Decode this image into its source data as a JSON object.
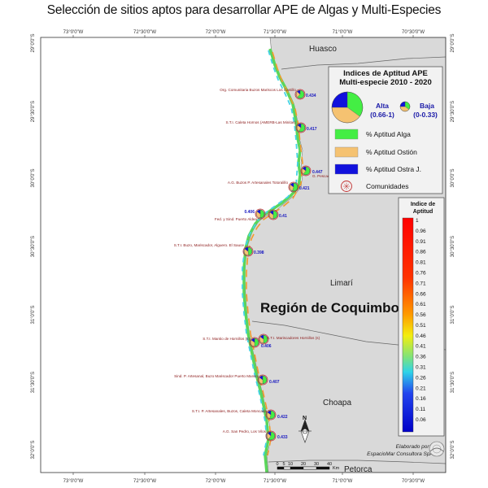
{
  "title": "Selección de sitios aptos para desarrollar APE de Algas y Multi-Especies",
  "map": {
    "lon_ticks": [
      "73°0'0\"W",
      "72°30'0\"W",
      "72°0'0\"W",
      "71°30'0\"W",
      "71°0'0\"W",
      "70°30'0\"W"
    ],
    "lat_ticks": [
      "29°0'0\"S",
      "29°30'0\"S",
      "30°0'0\"S",
      "30°30'0\"S",
      "31°0'0\"S",
      "31°30'0\"S",
      "32°0'0\"S"
    ],
    "regions": {
      "huasco": "Huasco",
      "limari": "Limarí",
      "coquimbo": "Región de Coquimbo",
      "choapa": "Choapa",
      "petorca": "Petorca"
    },
    "colors": {
      "land": "#d9d9d9",
      "sea": "#ffffff",
      "alga": "#44ee44",
      "ostion": "#f5c271",
      "ostra": "#1111dd",
      "community": "#c03030"
    }
  },
  "sites": [
    {
      "name": "Org. Comunitaria Buzos Mariscos Los Castillo",
      "value": "0.434",
      "alga": 0.62,
      "ostion": 0.25,
      "ostra": 0.13
    },
    {
      "name": "S.T.I. Caleta Hornos (AMERB-Las Minitas)",
      "value": "0.417",
      "alga": 0.58,
      "ostion": 0.27,
      "ostra": 0.15
    },
    {
      "name": "G. Pescadores",
      "value": "0.447",
      "alga": 0.6,
      "ostion": 0.25,
      "ostra": 0.15
    },
    {
      "name": "A.G. Buzos P. Artesanales Totoralillo",
      "value": "0.421",
      "alga": 0.55,
      "ostion": 0.3,
      "ostra": 0.15
    },
    {
      "name": "Fed. y Sind. Puerto Aldea",
      "value": "0.406",
      "alga": 0.5,
      "ostion": 0.35,
      "ostra": 0.15
    },
    {
      "name": "",
      "value": "0.41",
      "alga": 0.5,
      "ostion": 0.35,
      "ostra": 0.15
    },
    {
      "name": "S.T.I. Buzo, Mariscador, Alguero. El Sauce",
      "value": "0.398",
      "alga": 0.48,
      "ostion": 0.37,
      "ostra": 0.15
    },
    {
      "name": "S.T.I. Mariscadores Hornillos (s)",
      "value": "",
      "alga": 0.5,
      "ostion": 0.35,
      "ostra": 0.15
    },
    {
      "name": "S.T.I. Mantio de Hornillos (s)",
      "value": "0.406",
      "alga": 0.5,
      "ostion": 0.35,
      "ostra": 0.15
    },
    {
      "name": "Sind. P. Artesanal, Buzo Mariscador Puerto Manso",
      "value": "0.407",
      "alga": 0.5,
      "ostion": 0.35,
      "ostra": 0.15
    },
    {
      "name": "S.T.I. P. Artesanales, Buzos, Caleta Moncada",
      "value": "0.422",
      "alga": 0.55,
      "ostion": 0.3,
      "ostra": 0.15
    },
    {
      "name": "A.G. San Pedro, Los Vilos",
      "value": "0.433",
      "alga": 0.6,
      "ostion": 0.27,
      "ostra": 0.13
    }
  ],
  "legend": {
    "title1": "Indices de Aptitud APE",
    "title2": "Multi-especie 2010 - 2020",
    "alta_label": "Alta",
    "alta_range": "(0.66-1)",
    "baja_label": "Baja",
    "baja_range": "(0-0.33)",
    "items": [
      {
        "label": "% Aptitud Alga",
        "color": "#44ee44"
      },
      {
        "label": "% Aptitud Ostión",
        "color": "#f5c271"
      },
      {
        "label": "% Aptitud Ostra J.",
        "color": "#1111dd"
      },
      {
        "label": "Comunidades",
        "color": "#c03030"
      }
    ]
  },
  "colorbar": {
    "title1": "Indice de",
    "title2": "Aptitud",
    "labels": [
      "1",
      "0.96",
      "0.91",
      "0.86",
      "0.81",
      "0.76",
      "0.71",
      "0.66",
      "0.61",
      "0.56",
      "0.51",
      "0.46",
      "0.41",
      "0.36",
      "0.31",
      "0.26",
      "0.21",
      "0.16",
      "0.11",
      "0.06"
    ]
  },
  "scalebar": {
    "labels": [
      "0",
      "5",
      "10",
      "20",
      "30",
      "40"
    ],
    "unit": "Km"
  },
  "north": "N",
  "credit": {
    "line1": "Elaborado por:",
    "line2": "EspacioMar Consultora SpA"
  }
}
